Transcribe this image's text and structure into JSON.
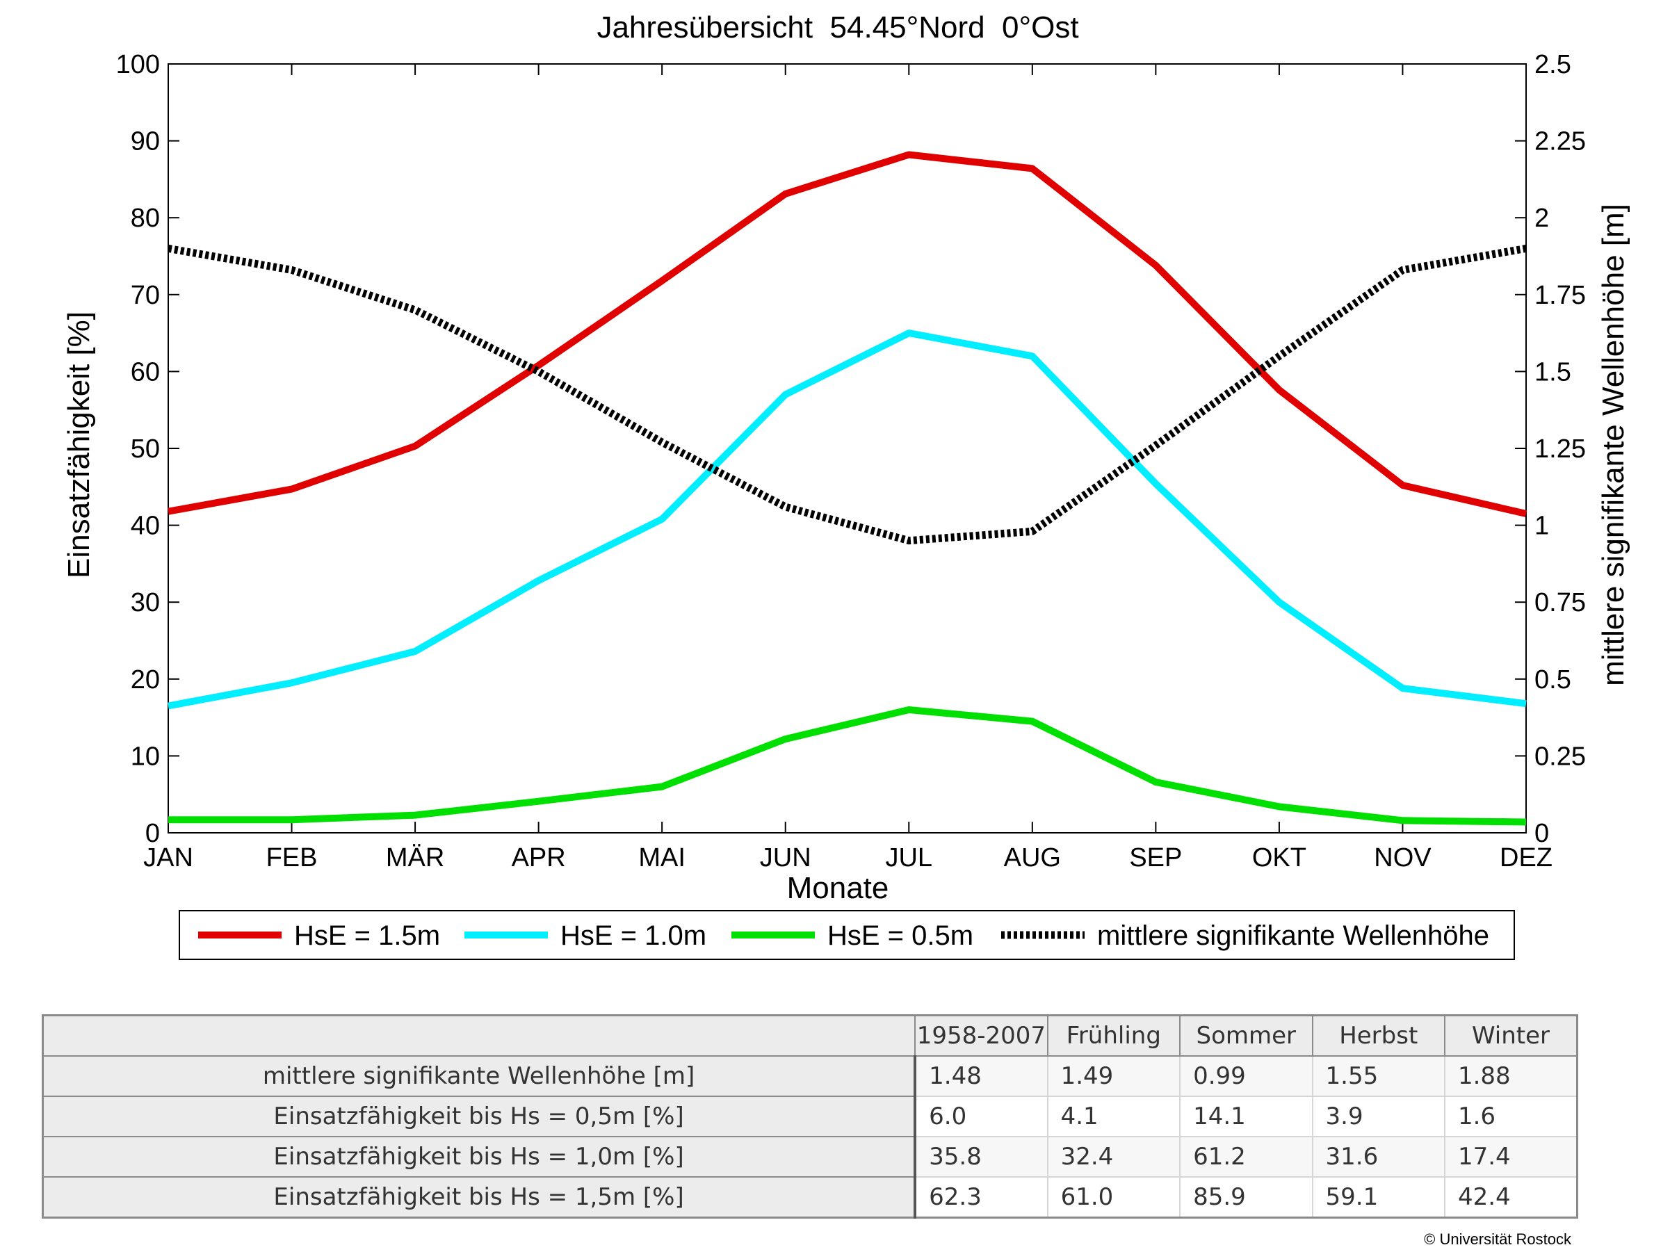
{
  "chart_data": {
    "type": "line",
    "title": "Jahresübersicht  54.45°Nord  0°Ost",
    "xlabel": "Monate",
    "ylabel": "Einsatzfähigkeit [%]",
    "y2label": "mittlere signifikante Wellenhöhe [m]",
    "categories": [
      "JAN",
      "FEB",
      "MÄR",
      "APR",
      "MAI",
      "JUN",
      "JUL",
      "AUG",
      "SEP",
      "OKT",
      "NOV",
      "DEZ"
    ],
    "ylim": [
      0,
      100
    ],
    "yticks": [
      "0",
      "10",
      "20",
      "30",
      "40",
      "50",
      "60",
      "70",
      "80",
      "90",
      "100"
    ],
    "y2lim": [
      0,
      2.5
    ],
    "y2ticks": [
      "0",
      "0.25",
      "0.5",
      "0.75",
      "1",
      "1.25",
      "1.5",
      "1.75",
      "2",
      "2.25",
      "2.5"
    ],
    "grid": false,
    "legend_position": "bottom",
    "series": [
      {
        "name": "HsE = 1.5m",
        "axis": "left",
        "color": "#e00000",
        "style": "solid",
        "values": [
          41.8,
          44.7,
          50.3,
          60.8,
          71.8,
          83.1,
          88.2,
          86.4,
          73.8,
          57.6,
          45.2,
          41.5
        ]
      },
      {
        "name": "HsE = 1.0m",
        "axis": "left",
        "color": "#00eeff",
        "style": "solid",
        "values": [
          16.5,
          19.5,
          23.6,
          32.8,
          40.8,
          57.0,
          65.0,
          62.0,
          45.4,
          30.0,
          18.8,
          16.8
        ]
      },
      {
        "name": "HsE = 0.5m",
        "axis": "left",
        "color": "#00e000",
        "style": "solid",
        "values": [
          1.7,
          1.7,
          2.3,
          4.1,
          6.0,
          12.2,
          16.0,
          14.5,
          6.6,
          3.4,
          1.6,
          1.4
        ]
      },
      {
        "name": "mittlere signifikante Wellenhöhe",
        "axis": "right",
        "color": "#000000",
        "style": "dotted",
        "values": [
          1.9,
          1.83,
          1.7,
          1.5,
          1.27,
          1.06,
          0.95,
          0.98,
          1.26,
          1.55,
          1.83,
          1.9
        ]
      }
    ]
  },
  "table": {
    "headers": [
      "1958-2007",
      "Frühling",
      "Sommer",
      "Herbst",
      "Winter"
    ],
    "rows": [
      {
        "label": "mittlere signifikante Wellenhöhe [m]",
        "values": [
          "1.48",
          "1.49",
          "0.99",
          "1.55",
          "1.88"
        ]
      },
      {
        "label": "Einsatzfähigkeit bis Hs = 0,5m [%]",
        "values": [
          "6.0",
          "4.1",
          "14.1",
          "3.9",
          "1.6"
        ]
      },
      {
        "label": "Einsatzfähigkeit bis Hs = 1,0m [%]",
        "values": [
          "35.8",
          "32.4",
          "61.2",
          "31.6",
          "17.4"
        ]
      },
      {
        "label": "Einsatzfähigkeit bis Hs = 1,5m [%]",
        "values": [
          "62.3",
          "61.0",
          "85.9",
          "59.1",
          "42.4"
        ]
      }
    ]
  },
  "copyright": "© Universität Rostock"
}
